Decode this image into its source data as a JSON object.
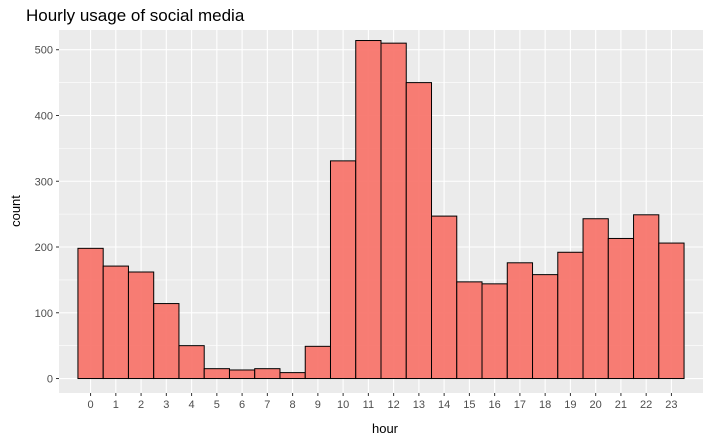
{
  "chart_data": {
    "type": "bar",
    "title": "Hourly usage of social media",
    "xlabel": "hour",
    "ylabel": "count",
    "categories": [
      "0",
      "1",
      "2",
      "3",
      "4",
      "5",
      "6",
      "7",
      "8",
      "9",
      "10",
      "11",
      "12",
      "13",
      "14",
      "15",
      "16",
      "17",
      "18",
      "19",
      "20",
      "21",
      "22",
      "23"
    ],
    "values": [
      198,
      171,
      162,
      114,
      50,
      15,
      13,
      15,
      9,
      49,
      331,
      514,
      510,
      450,
      247,
      147,
      144,
      176,
      158,
      192,
      243,
      213,
      249,
      206
    ],
    "ylim": [
      -22,
      530
    ],
    "yticks": [
      0,
      100,
      200,
      300,
      400,
      500
    ],
    "grid": true,
    "bar_fill": "#f8766d",
    "bar_stroke": "#000000",
    "panel_background": "#ebebeb",
    "grid_color": "#ffffff"
  }
}
